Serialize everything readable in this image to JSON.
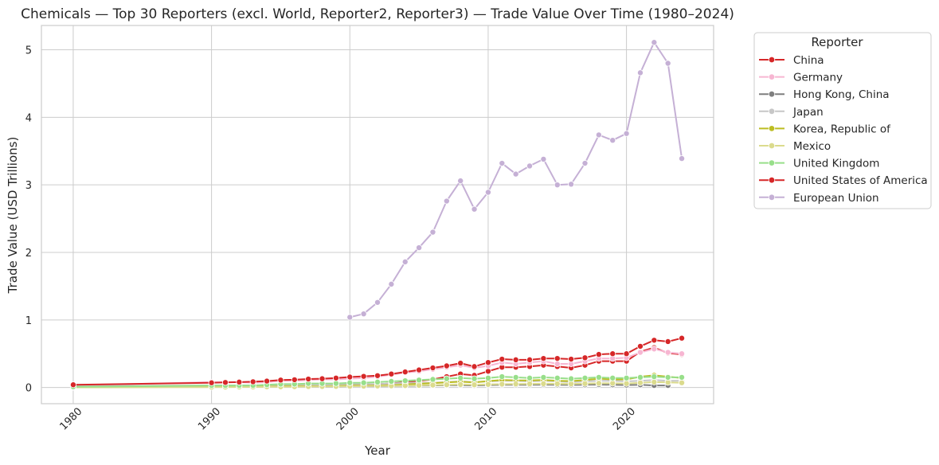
{
  "chart_data": {
    "type": "line",
    "title": "Chemicals — Top 30 Reporters (excl. World, Reporter2, Reporter3) — Trade Value Over Time (1980–2024)",
    "xlabel": "Year",
    "ylabel": "Trade Value (USD Trillions)",
    "xlim": [
      1977.7,
      2026.3
    ],
    "ylim": [
      -0.24,
      5.36
    ],
    "x_ticks": [
      1980,
      1990,
      2000,
      2010,
      2020
    ],
    "y_ticks": [
      0,
      1,
      2,
      3,
      4,
      5
    ],
    "grid": true,
    "legend_title": "Reporter",
    "legend_position": "outside-top-right",
    "series": [
      {
        "name": "China",
        "color": "#d62728",
        "x": [
          1980,
          1990,
          1991,
          1992,
          1993,
          1994,
          1995,
          1996,
          1997,
          1998,
          1999,
          2000,
          2001,
          2002,
          2003,
          2004,
          2005,
          2006,
          2007,
          2008,
          2009,
          2010,
          2011,
          2012,
          2013,
          2014,
          2015,
          2016,
          2017,
          2018,
          2019,
          2020,
          2021,
          2022,
          2023,
          2024
        ],
        "y": [
          0.01,
          0.02,
          0.02,
          0.02,
          0.02,
          0.02,
          0.03,
          0.03,
          0.03,
          0.03,
          0.03,
          0.04,
          0.04,
          0.05,
          0.06,
          0.08,
          0.1,
          0.12,
          0.16,
          0.2,
          0.18,
          0.24,
          0.3,
          0.3,
          0.31,
          0.33,
          0.31,
          0.29,
          0.33,
          0.39,
          0.39,
          0.39,
          0.53,
          0.59,
          0.51,
          0.49
        ]
      },
      {
        "name": "Germany",
        "color": "#f7b6d2",
        "x": [
          1980,
          1990,
          1991,
          1992,
          1993,
          1994,
          1995,
          1996,
          1997,
          1998,
          1999,
          2000,
          2001,
          2002,
          2003,
          2004,
          2005,
          2006,
          2007,
          2008,
          2009,
          2010,
          2011,
          2012,
          2013,
          2014,
          2015,
          2016,
          2017,
          2018,
          2019,
          2020,
          2021,
          2022,
          2023,
          2024
        ],
        "y": [
          0.03,
          0.08,
          0.08,
          0.08,
          0.07,
          0.08,
          0.1,
          0.1,
          0.11,
          0.12,
          0.12,
          0.13,
          0.14,
          0.16,
          0.19,
          0.22,
          0.24,
          0.27,
          0.3,
          0.33,
          0.29,
          0.32,
          0.37,
          0.35,
          0.37,
          0.39,
          0.35,
          0.35,
          0.39,
          0.43,
          0.43,
          0.44,
          0.52,
          0.57,
          0.52,
          0.5
        ]
      },
      {
        "name": "Hong Kong, China",
        "color": "#7f7f7f",
        "x": [
          1980,
          1990,
          1991,
          1992,
          1993,
          1994,
          1995,
          1996,
          1997,
          1998,
          1999,
          2000,
          2001,
          2002,
          2003,
          2004,
          2005,
          2006,
          2007,
          2008,
          2009,
          2010,
          2011,
          2012,
          2013,
          2014,
          2015,
          2016,
          2017,
          2018,
          2019,
          2020,
          2021,
          2022,
          2023
        ],
        "y": [
          0.005,
          0.01,
          0.01,
          0.012,
          0.013,
          0.015,
          0.017,
          0.018,
          0.019,
          0.018,
          0.017,
          0.02,
          0.02,
          0.021,
          0.022,
          0.025,
          0.028,
          0.03,
          0.033,
          0.034,
          0.03,
          0.036,
          0.04,
          0.04,
          0.041,
          0.042,
          0.04,
          0.038,
          0.04,
          0.043,
          0.04,
          0.036,
          0.04,
          0.03,
          0.03
        ]
      },
      {
        "name": "Japan",
        "color": "#c7c7c7",
        "x": [
          1980,
          1990,
          1991,
          1992,
          1993,
          1994,
          1995,
          1996,
          1997,
          1998,
          1999,
          2000,
          2001,
          2002,
          2003,
          2004,
          2005,
          2006,
          2007,
          2008,
          2009,
          2010,
          2011,
          2012,
          2013,
          2014,
          2015,
          2016,
          2017,
          2018,
          2019,
          2020,
          2021,
          2022,
          2023,
          2024
        ],
        "y": [
          0.02,
          0.03,
          0.03,
          0.03,
          0.03,
          0.03,
          0.04,
          0.04,
          0.04,
          0.04,
          0.04,
          0.05,
          0.05,
          0.05,
          0.06,
          0.07,
          0.07,
          0.07,
          0.08,
          0.09,
          0.08,
          0.09,
          0.1,
          0.1,
          0.09,
          0.1,
          0.09,
          0.08,
          0.09,
          0.1,
          0.1,
          0.09,
          0.1,
          0.11,
          0.1,
          0.1
        ]
      },
      {
        "name": "Korea, Republic of",
        "color": "#bcbd22",
        "x": [
          1980,
          1990,
          1991,
          1992,
          1993,
          1994,
          1995,
          1996,
          1997,
          1998,
          1999,
          2000,
          2001,
          2002,
          2003,
          2004,
          2005,
          2006,
          2007,
          2008,
          2009,
          2010,
          2011,
          2012,
          2013,
          2014,
          2015,
          2016,
          2017,
          2018,
          2019,
          2020,
          2021,
          2022,
          2023,
          2024
        ],
        "y": [
          0.004,
          0.01,
          0.01,
          0.01,
          0.012,
          0.014,
          0.018,
          0.02,
          0.02,
          0.018,
          0.022,
          0.03,
          0.028,
          0.03,
          0.035,
          0.045,
          0.055,
          0.065,
          0.075,
          0.085,
          0.075,
          0.095,
          0.11,
          0.105,
          0.105,
          0.11,
          0.1,
          0.095,
          0.11,
          0.13,
          0.12,
          0.12,
          0.16,
          0.18,
          0.16,
          0.14
        ]
      },
      {
        "name": "Mexico",
        "color": "#dbdb8d",
        "x": [
          1980,
          1990,
          1991,
          1992,
          1993,
          1994,
          1995,
          1996,
          1997,
          1998,
          1999,
          2000,
          2001,
          2002,
          2003,
          2004,
          2005,
          2006,
          2007,
          2008,
          2009,
          2010,
          2011,
          2012,
          2013,
          2014,
          2015,
          2016,
          2017,
          2018,
          2019,
          2020,
          2021,
          2022,
          2023,
          2024
        ],
        "y": [
          0.003,
          0.005,
          0.006,
          0.007,
          0.008,
          0.01,
          0.01,
          0.012,
          0.014,
          0.015,
          0.016,
          0.018,
          0.02,
          0.022,
          0.024,
          0.028,
          0.032,
          0.036,
          0.04,
          0.045,
          0.04,
          0.046,
          0.05,
          0.052,
          0.054,
          0.056,
          0.055,
          0.054,
          0.058,
          0.062,
          0.062,
          0.058,
          0.07,
          0.08,
          0.075,
          0.07
        ]
      },
      {
        "name": "United Kingdom",
        "color": "#98df8a",
        "x": [
          1980,
          1990,
          1991,
          1992,
          1993,
          1994,
          1995,
          1996,
          1997,
          1998,
          1999,
          2000,
          2001,
          2002,
          2003,
          2004,
          2005,
          2006,
          2007,
          2008,
          2009,
          2010,
          2011,
          2012,
          2013,
          2014,
          2015,
          2016,
          2017,
          2018,
          2019,
          2020,
          2021,
          2022,
          2023,
          2024
        ],
        "y": [
          0.01,
          0.03,
          0.03,
          0.03,
          0.03,
          0.04,
          0.05,
          0.05,
          0.06,
          0.06,
          0.06,
          0.07,
          0.07,
          0.08,
          0.09,
          0.1,
          0.11,
          0.12,
          0.13,
          0.14,
          0.13,
          0.14,
          0.16,
          0.15,
          0.14,
          0.15,
          0.14,
          0.13,
          0.14,
          0.15,
          0.14,
          0.14,
          0.15,
          0.16,
          0.15,
          0.15
        ]
      },
      {
        "name": "United States of America",
        "color": "#d62728",
        "x": [
          1980,
          1990,
          1991,
          1992,
          1993,
          1994,
          1995,
          1996,
          1997,
          1998,
          1999,
          2000,
          2001,
          2002,
          2003,
          2004,
          2005,
          2006,
          2007,
          2008,
          2009,
          2010,
          2011,
          2012,
          2013,
          2014,
          2015,
          2016,
          2017,
          2018,
          2019,
          2020,
          2021,
          2022,
          2023,
          2024
        ],
        "y": [
          0.04,
          0.07,
          0.075,
          0.08,
          0.085,
          0.095,
          0.11,
          0.115,
          0.125,
          0.13,
          0.14,
          0.155,
          0.165,
          0.175,
          0.2,
          0.23,
          0.26,
          0.29,
          0.32,
          0.36,
          0.31,
          0.37,
          0.42,
          0.41,
          0.41,
          0.43,
          0.43,
          0.42,
          0.44,
          0.49,
          0.5,
          0.5,
          0.61,
          0.7,
          0.68,
          0.73
        ]
      },
      {
        "name": "European Union",
        "color": "#c5b0d5",
        "x": [
          2000,
          2001,
          2002,
          2003,
          2004,
          2005,
          2006,
          2007,
          2008,
          2009,
          2010,
          2011,
          2012,
          2013,
          2014,
          2015,
          2016,
          2017,
          2018,
          2019,
          2020,
          2021,
          2022,
          2023,
          2024
        ],
        "y": [
          1.04,
          1.09,
          1.26,
          1.53,
          1.86,
          2.07,
          2.3,
          2.76,
          3.06,
          2.64,
          2.89,
          3.32,
          3.16,
          3.28,
          3.38,
          3.0,
          3.01,
          3.32,
          3.74,
          3.66,
          3.76,
          4.66,
          5.11,
          4.8,
          3.39
        ]
      }
    ]
  }
}
